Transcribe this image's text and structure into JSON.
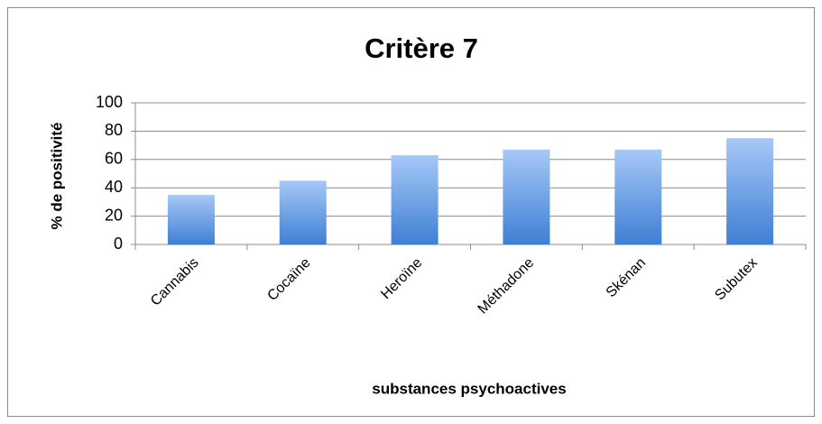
{
  "chart_data": {
    "type": "bar",
    "title": "Critère 7",
    "categories": [
      "Cannabis",
      "Cocaïne",
      "Heroïne",
      "Méthadone",
      "Skénan",
      "Subutex"
    ],
    "values": [
      35,
      45,
      63,
      67,
      67,
      75
    ],
    "color": "#3f7fd4",
    "xlabel": "substances psychoactives",
    "ylabel": "% de positivité",
    "ylim": [
      0,
      100
    ],
    "yticks": [
      0,
      20,
      40,
      60,
      80,
      100
    ],
    "grid": true
  }
}
